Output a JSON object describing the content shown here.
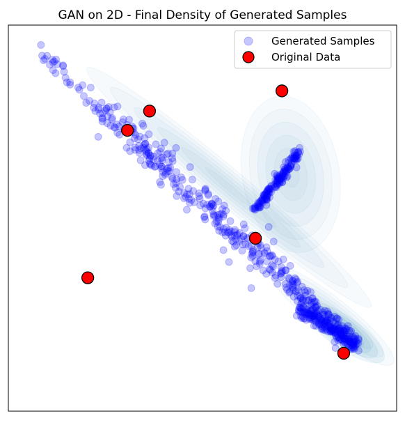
{
  "chart_data": {
    "type": "scatter",
    "title": "GAN on 2D - Final Density of Generated Samples",
    "xlabel": "",
    "ylabel": "",
    "xlim": [
      -2.2,
      2.2
    ],
    "ylim": [
      -2.2,
      2.2
    ],
    "grid": false,
    "ticks_visible": false,
    "legend": {
      "position": "top-right",
      "entries": [
        "Generated Samples",
        "Original Data"
      ]
    },
    "series": [
      {
        "name": "Generated Samples",
        "marker": "circle",
        "color": "#0000ff",
        "alpha": 0.22,
        "description_trend": "dense band running from upper-left to lower-right, with a short offshoot rising to the upper-right"
      },
      {
        "name": "Original Data",
        "marker": "circle",
        "color": "#ff0000",
        "edgecolor": "#000000",
        "points": [
          [
            -0.6,
            1.22
          ],
          [
            0.9,
            1.45
          ],
          [
            -0.85,
            1.0
          ],
          [
            0.6,
            -0.23
          ],
          [
            -1.3,
            -0.68
          ],
          [
            1.6,
            -1.54
          ]
        ]
      }
    ],
    "density_color": "#2b8cbe"
  }
}
